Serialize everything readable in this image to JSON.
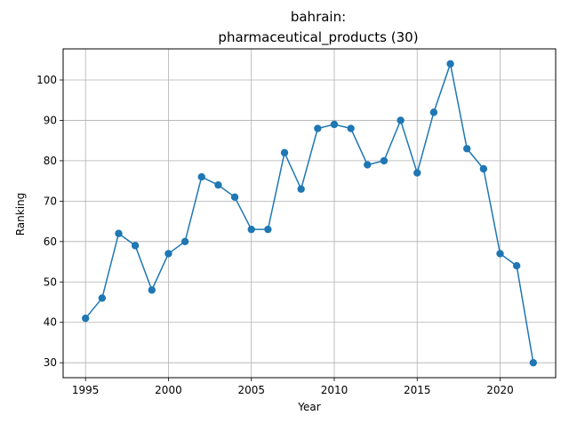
{
  "chart_data": {
    "type": "line",
    "title_line1": "bahrain:",
    "title_line2": "pharmaceutical_products (30)",
    "xlabel": "Year",
    "ylabel": "Ranking",
    "xlim": [
      1993.65,
      2023.35
    ],
    "ylim": [
      26.3,
      107.7
    ],
    "x_ticks": [
      1995,
      2000,
      2005,
      2010,
      2015,
      2020
    ],
    "y_ticks": [
      30,
      40,
      50,
      60,
      70,
      80,
      90,
      100
    ],
    "grid": true,
    "series": [
      {
        "color": "#1f77b4",
        "marker": "circle",
        "x": [
          1995,
          1996,
          1997,
          1998,
          1999,
          2000,
          2001,
          2002,
          2003,
          2004,
          2005,
          2006,
          2007,
          2008,
          2009,
          2010,
          2011,
          2012,
          2013,
          2014,
          2015,
          2016,
          2017,
          2018,
          2019,
          2020,
          2021,
          2022
        ],
        "y": [
          41,
          46,
          62,
          59,
          48,
          57,
          60,
          76,
          74,
          71,
          63,
          63,
          82,
          73,
          88,
          89,
          88,
          79,
          80,
          90,
          77,
          92,
          104,
          83,
          78,
          57,
          54,
          30
        ]
      }
    ]
  }
}
